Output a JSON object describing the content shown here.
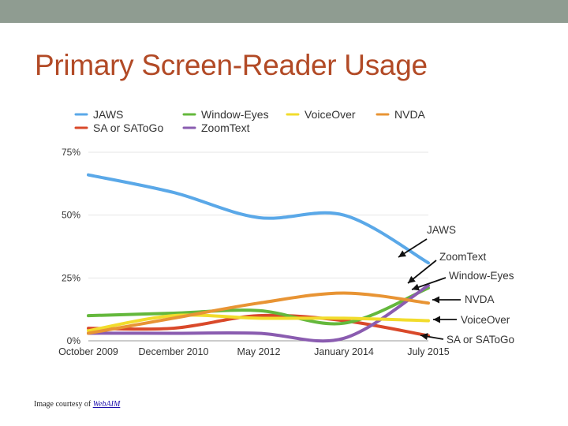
{
  "slide": {
    "title": "Primary Screen-Reader Usage",
    "footer_prefix": "Image courtesy of",
    "footer_link": "WebAIM"
  },
  "colors": {
    "topbar": "#8f9c91",
    "title": "#b24a26",
    "JAWS": "#5aa8e8",
    "Window-Eyes": "#64b83c",
    "VoiceOver": "#f2dc2c",
    "NVDA": "#e89434",
    "SA or SAToGo": "#d9492a",
    "ZoomText": "#8a5cb0"
  },
  "chart_data": {
    "type": "line",
    "categories": [
      "October 2009",
      "December 2010",
      "May 2012",
      "January 2014",
      "July 2015"
    ],
    "ylim": [
      0,
      75
    ],
    "yticks": [
      "0%",
      "25%",
      "50%",
      "75%"
    ],
    "legend_position": "top",
    "grid": "horizontal",
    "series": [
      {
        "name": "JAWS",
        "values": [
          66,
          59,
          49,
          50,
          31
        ]
      },
      {
        "name": "SA or SAToGo",
        "values": [
          5,
          5,
          10,
          8,
          2
        ]
      },
      {
        "name": "Window-Eyes",
        "values": [
          10,
          11,
          12,
          7,
          21
        ]
      },
      {
        "name": "ZoomText",
        "values": [
          3,
          3,
          3,
          1,
          22
        ]
      },
      {
        "name": "VoiceOver",
        "values": [
          4,
          10,
          9,
          9,
          8
        ]
      },
      {
        "name": "NVDA",
        "values": [
          3,
          9,
          15,
          19,
          15
        ]
      }
    ],
    "end_labels": [
      "JAWS",
      "ZoomText",
      "Window-Eyes",
      "NVDA",
      "VoiceOver",
      "SA or SAToGo"
    ]
  }
}
